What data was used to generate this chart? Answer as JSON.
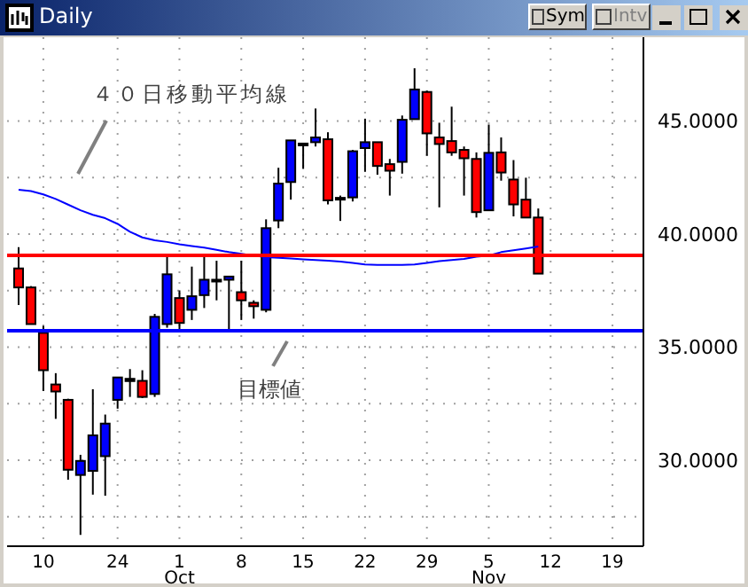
{
  "chart_data": {
    "type": "candlestick",
    "title": "Daily",
    "categories": [
      null,
      null,
      "10",
      null,
      null,
      null,
      null,
      null,
      "24",
      null,
      null,
      null,
      null,
      "1\nOct",
      null,
      null,
      null,
      null,
      "8",
      null,
      null,
      null,
      null,
      "15",
      null,
      null,
      null,
      null,
      "22",
      null,
      null,
      null,
      null,
      "29",
      null,
      null,
      null,
      null,
      "5\nNov",
      null,
      null,
      null,
      null,
      "12",
      null,
      null,
      null,
      null,
      "19",
      null,
      null
    ],
    "ohlc": [
      [
        38.48,
        39.42,
        36.86,
        37.64
      ],
      [
        37.64,
        37.7,
        36.0,
        36.02
      ],
      [
        35.63,
        35.94,
        33.06,
        33.98
      ],
      [
        33.35,
        33.85,
        31.83,
        33.04
      ],
      [
        32.67,
        32.72,
        29.14,
        29.58
      ],
      [
        29.35,
        30.24,
        26.7,
        29.97
      ],
      [
        29.53,
        33.14,
        28.48,
        31.1
      ],
      [
        30.18,
        32.02,
        28.43,
        31.62
      ],
      [
        32.67,
        33.66,
        32.28,
        33.66
      ],
      [
        33.6,
        34.03,
        32.8,
        33.5
      ],
      [
        33.51,
        33.98,
        32.75,
        32.8
      ],
      [
        32.93,
        36.47,
        32.8,
        36.34
      ],
      [
        36.02,
        39.01,
        35.86,
        38.22
      ],
      [
        37.17,
        37.51,
        35.76,
        36.07
      ],
      [
        36.65,
        38.56,
        36.2,
        37.25
      ],
      [
        37.3,
        39.01,
        36.73,
        37.98
      ],
      [
        37.98,
        38.82,
        37.07,
        37.98
      ],
      [
        37.98,
        38.12,
        35.71,
        38.12
      ],
      [
        37.43,
        38.82,
        36.2,
        37.07
      ],
      [
        36.96,
        37.07,
        36.26,
        36.81
      ],
      [
        36.65,
        40.65,
        36.54,
        40.26
      ],
      [
        40.6,
        42.93,
        40.26,
        42.23
      ],
      [
        42.3,
        44.14,
        41.52,
        44.14
      ],
      [
        43.95,
        44.0,
        42.88,
        44.0
      ],
      [
        44.06,
        45.55,
        43.87,
        44.27
      ],
      [
        44.19,
        44.5,
        41.31,
        41.49
      ],
      [
        41.6,
        41.7,
        40.58,
        41.55
      ],
      [
        41.62,
        43.72,
        41.44,
        43.66
      ],
      [
        43.8,
        45.1,
        42.75,
        44.06
      ],
      [
        44.06,
        44.06,
        42.62,
        43.01
      ],
      [
        43.09,
        43.32,
        41.7,
        42.8
      ],
      [
        43.19,
        45.24,
        42.67,
        45.05
      ],
      [
        45.08,
        47.33,
        45.08,
        46.39
      ],
      [
        46.28,
        46.34,
        43.46,
        44.45
      ],
      [
        44.27,
        44.92,
        41.18,
        43.98
      ],
      [
        44.11,
        45.63,
        43.46,
        43.61
      ],
      [
        43.72,
        43.87,
        41.7,
        43.35
      ],
      [
        43.32,
        43.61,
        40.73,
        40.97
      ],
      [
        41.05,
        44.84,
        41.05,
        43.59
      ],
      [
        43.61,
        44.27,
        42.36,
        42.72
      ],
      [
        42.41,
        43.27,
        40.78,
        41.31
      ],
      [
        41.52,
        42.49,
        40.73,
        40.73
      ],
      [
        40.73,
        41.13,
        38.25,
        38.25
      ],
      null,
      null,
      null,
      null,
      null,
      null,
      null,
      null
    ],
    "colors": [
      "#ff0000",
      "#ff0000",
      "#ff0000",
      "#ff0000",
      "#ff0000",
      "#0000ff",
      "#0000ff",
      "#0000ff",
      "#0000ff",
      "#000000",
      "#ff0000",
      "#0000ff",
      "#0000ff",
      "#ff0000",
      "#0000ff",
      "#0000ff",
      "#000000",
      "#0000ff",
      "#ff0000",
      "#ff0000",
      "#0000ff",
      "#0000ff",
      "#0000ff",
      "#0000ff",
      "#0000ff",
      "#ff0000",
      "#000000",
      "#0000ff",
      "#0000ff",
      "#ff0000",
      "#ff0000",
      "#0000ff",
      "#0000ff",
      "#ff0000",
      "#ff0000",
      "#ff0000",
      "#ff0000",
      "#ff0000",
      "#0000ff",
      "#ff0000",
      "#ff0000",
      "#ff0000",
      "#ff0000",
      null,
      null,
      null,
      null,
      null,
      null,
      null,
      null
    ],
    "series": [
      {
        "type": "line",
        "name": "４０日移動平均線",
        "color": "#0000ff",
        "values": [
          41.96,
          41.9,
          41.75,
          41.55,
          41.3,
          41.05,
          40.85,
          40.7,
          40.45,
          40.1,
          39.85,
          39.72,
          39.65,
          39.55,
          39.47,
          39.4,
          39.3,
          39.2,
          39.13,
          39.05,
          38.98,
          38.95,
          38.92,
          38.88,
          38.85,
          38.82,
          38.78,
          38.72,
          38.66,
          38.64,
          38.64,
          38.64,
          38.66,
          38.72,
          38.8,
          38.85,
          38.9,
          39.0,
          39.05,
          39.2,
          39.28,
          39.36,
          39.45,
          null,
          null,
          null,
          null,
          null,
          null,
          null,
          null
        ]
      }
    ],
    "ref_lines": [
      {
        "axis": "y",
        "value": 39.06,
        "label": null,
        "color": "#ff0000"
      },
      {
        "axis": "y",
        "value": 35.73,
        "label": "目標値",
        "color": "#0000ff"
      }
    ],
    "ylim": [
      26.2,
      48.7
    ],
    "yticks": [
      {
        "value": 27.5,
        "label": null
      },
      {
        "value": 30,
        "label": "30.0000"
      },
      {
        "value": 32.5,
        "label": null
      },
      {
        "value": 35,
        "label": "35.0000"
      },
      {
        "value": 37.5,
        "label": null
      },
      {
        "value": 40,
        "label": "40.0000"
      },
      {
        "value": 42.5,
        "label": null
      },
      {
        "value": 45,
        "label": "45.0000"
      }
    ],
    "grid": true,
    "line_style": "solid",
    "marker": "none",
    "annotations": [
      "Sym",
      "Intv"
    ]
  }
}
